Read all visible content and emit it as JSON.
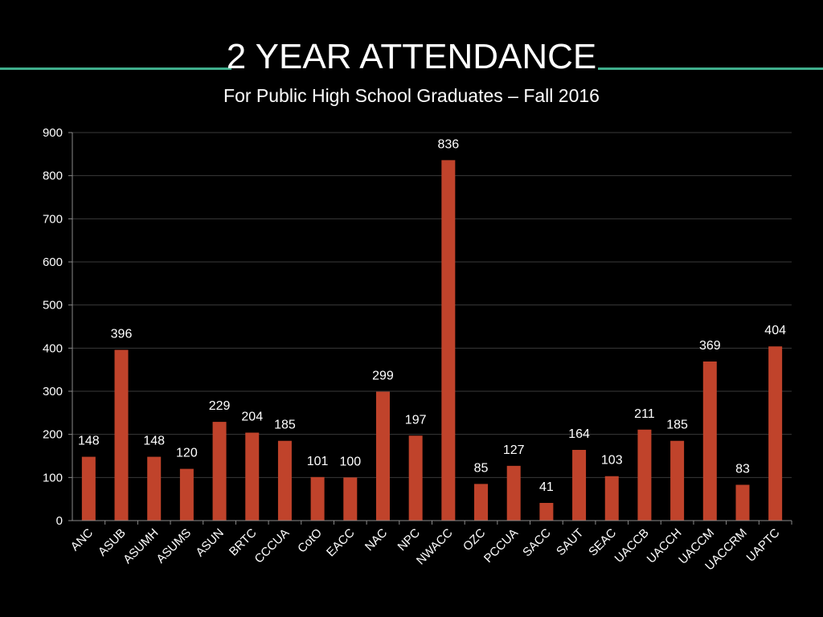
{
  "header": {
    "title": "2 YEAR ATTENDANCE",
    "subtitle": "For Public High School Graduates – Fall 2016"
  },
  "colors": {
    "background": "#000000",
    "bar": "#C0432B",
    "rule": "#3FAE8C",
    "grid": "#3A3A3A",
    "axis": "#8A8A8A",
    "text": "#FFFFFF"
  },
  "chart_data": {
    "type": "bar",
    "title": "2 YEAR ATTENDANCE",
    "subtitle": "For Public High School Graduates – Fall 2016",
    "xlabel": "",
    "ylabel": "",
    "ylim": [
      0,
      900
    ],
    "yticks": [
      0,
      100,
      200,
      300,
      400,
      500,
      600,
      700,
      800,
      900
    ],
    "grid": true,
    "legend": "none",
    "categories": [
      "ANC",
      "ASUB",
      "ASUMH",
      "ASUMS",
      "ASUN",
      "BRTC",
      "CCCUA",
      "CotO",
      "EACC",
      "NAC",
      "NPC",
      "NWACC",
      "OZC",
      "PCCUA",
      "SACC",
      "SAUT",
      "SEAC",
      "UACCB",
      "UACCH",
      "UACCM",
      "UACCRM",
      "UAPTC"
    ],
    "values": [
      148,
      396,
      148,
      120,
      229,
      204,
      185,
      101,
      100,
      299,
      197,
      836,
      85,
      127,
      41,
      164,
      103,
      211,
      185,
      369,
      83,
      404
    ]
  }
}
